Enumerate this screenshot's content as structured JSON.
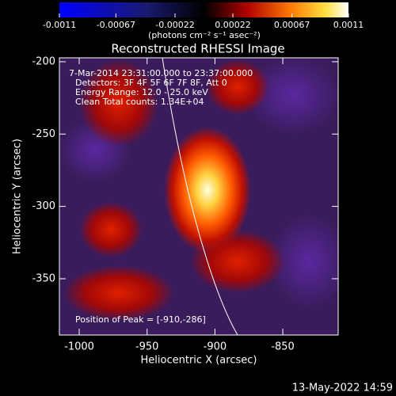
{
  "chart_data": {
    "type": "image",
    "title": "Reconstructed RHESSI Image",
    "xlabel": "Heliocentric X (arcsec)",
    "ylabel": "Heliocentric Y (arcsec)",
    "xlim": [
      -1014.6,
      -809.2
    ],
    "xticks": [
      -1000,
      -950,
      -900,
      -850
    ],
    "ylim": [
      -388.9,
      -197.3
    ],
    "yticks": [
      -200,
      -250,
      -300,
      -350
    ],
    "colorbar": {
      "label": "(photons cm⁻² s⁻¹ asec⁻²)",
      "lim": [
        -0.0011,
        0.0011
      ],
      "ticks": [
        -0.0011,
        -0.00067,
        -0.00022,
        0.00022,
        0.00067,
        0.0011
      ]
    },
    "annotations": [
      "7-Mar-2014 23:31:00.000 to 23:37:00.000",
      "Detectors: 3F 4F 5F 6F 7F 8F, Att 0",
      "Energy Range: 12.0 - 25.0 keV",
      "Clean    Total counts: 1.34E+04"
    ],
    "peak_label": "Position of Peak = [-910,-286]",
    "timestamp": "13-May-2022 14:59"
  }
}
